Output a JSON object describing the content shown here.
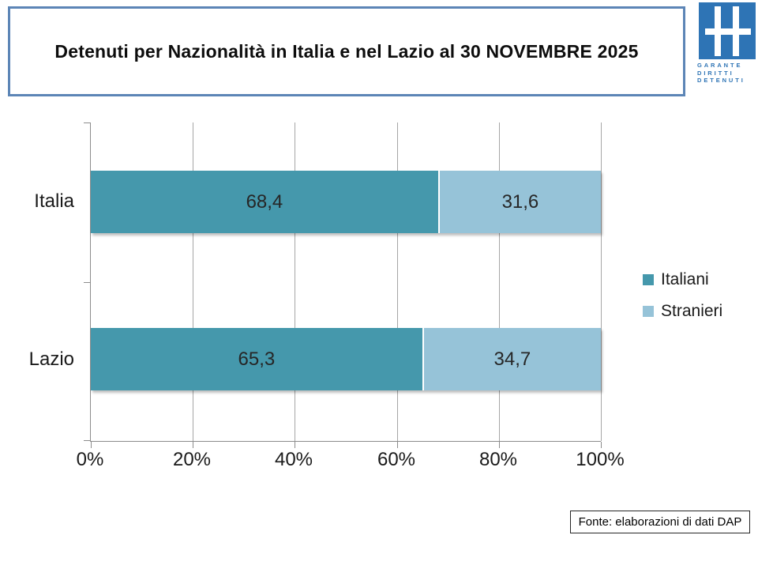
{
  "header": {
    "title": "Detenuti per Nazionalità in Italia e nel Lazio al 30 NOVEMBRE 2025",
    "logo": {
      "lines": [
        "GARANTE",
        "DIRITTI",
        "DETENUTI"
      ],
      "color": "#2E74B5"
    }
  },
  "chart_data": {
    "type": "bar",
    "orientation": "horizontal",
    "stacked": true,
    "stacked_to_100_percent": true,
    "title": "Detenuti per Nazionalità in Italia e nel Lazio al 30 NOVEMBRE 2025",
    "categories": [
      "Italia",
      "Lazio"
    ],
    "series": [
      {
        "name": "Italiani",
        "color": "#4598AC",
        "values": [
          68.4,
          65.3
        ],
        "labels": [
          "68,4",
          "65,3"
        ]
      },
      {
        "name": "Stranieri",
        "color": "#96C3D8",
        "values": [
          31.6,
          34.7
        ],
        "labels": [
          "31,6",
          "34,7"
        ]
      }
    ],
    "x_ticks": [
      "0%",
      "20%",
      "40%",
      "60%",
      "80%",
      "100%"
    ],
    "xlim": [
      0,
      100
    ],
    "grid": "vertical-gridlines-on",
    "legend_position": "right",
    "value_labels_position": "center-of-segment"
  },
  "footer": {
    "source": "Fonte: elaborazioni di dati DAP"
  },
  "colors": {
    "title_border": "#5C85B6",
    "logo_blue": "#2E74B5",
    "gridline": "#A6A6A6",
    "axis": "#8C8C8C",
    "background": "#FFFFFF"
  }
}
